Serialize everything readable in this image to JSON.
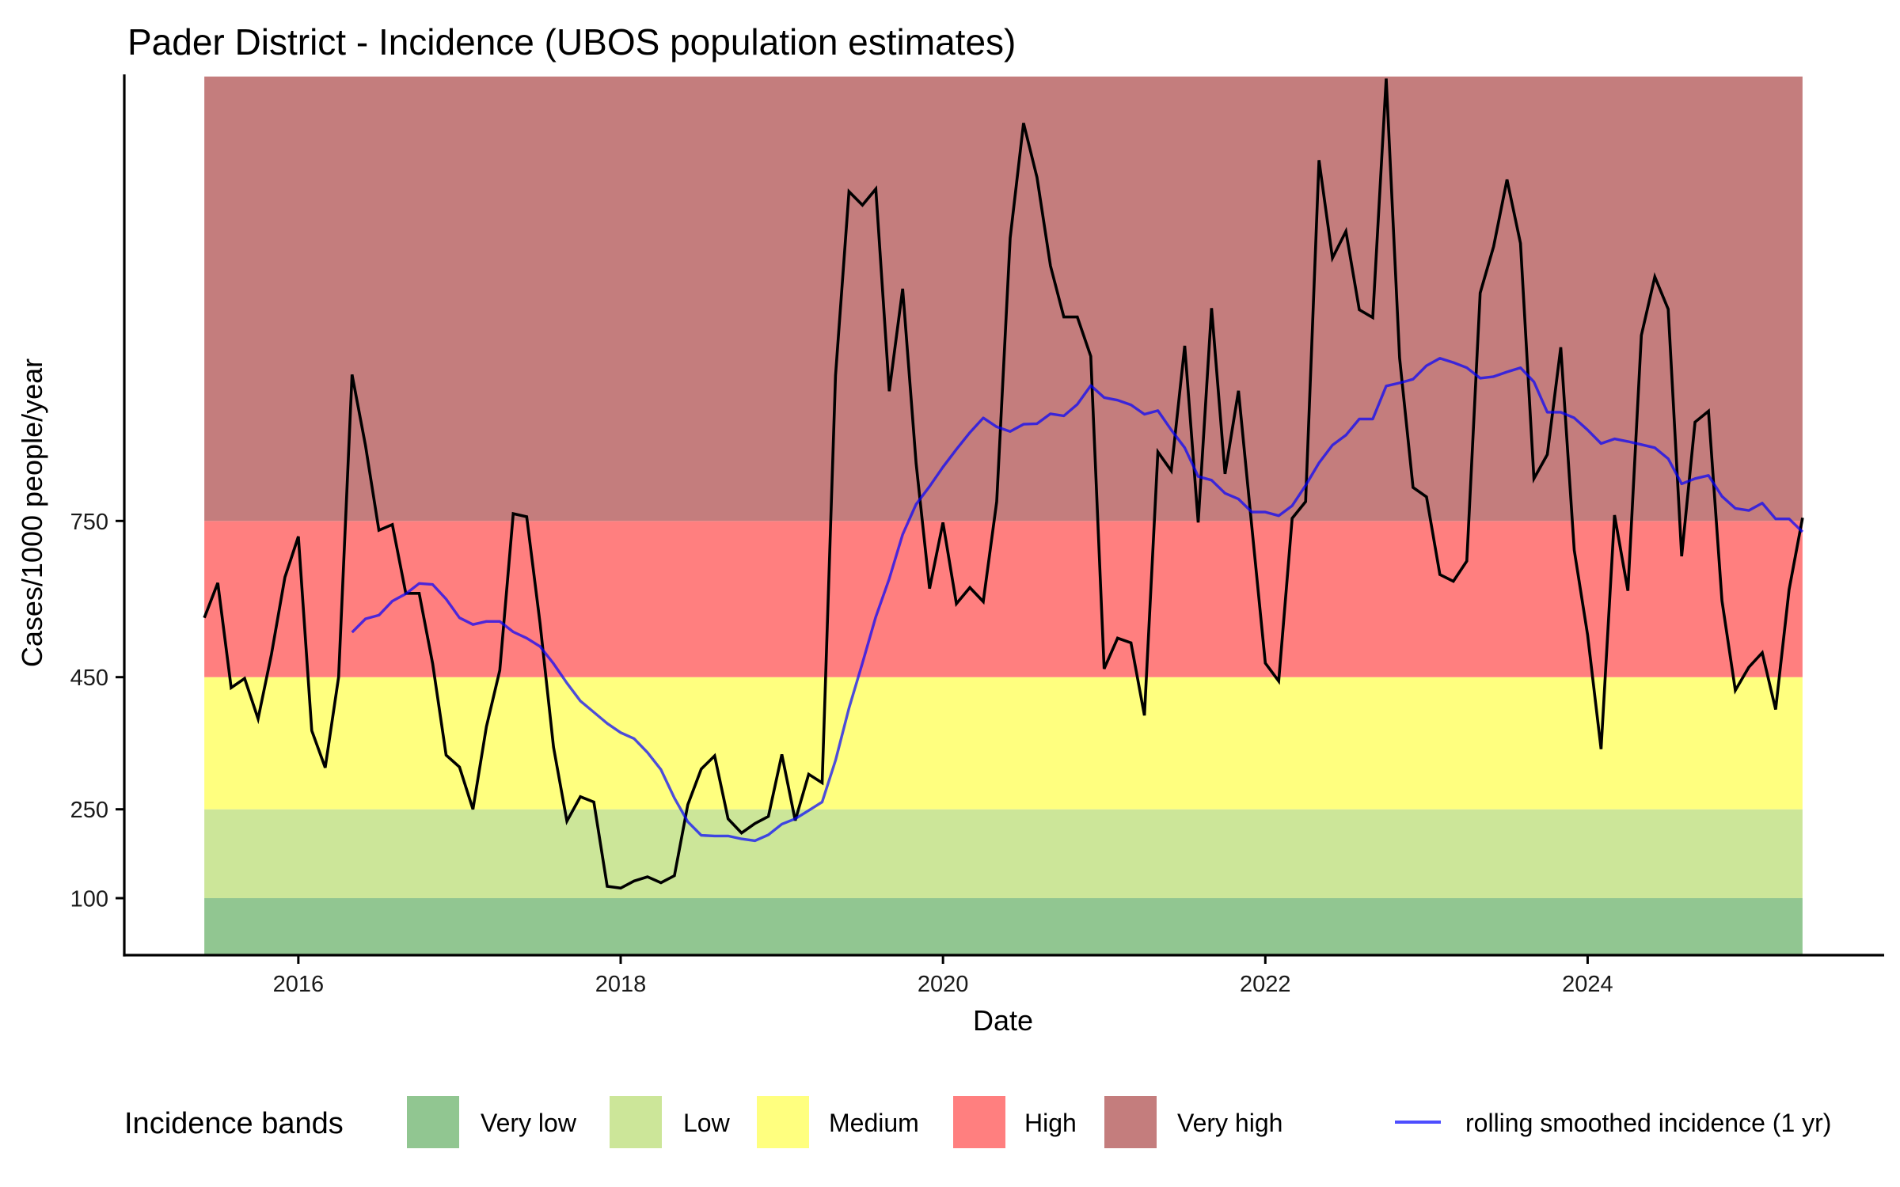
{
  "chart_data": {
    "type": "line",
    "title": "Pader District - Incidence (UBOS population estimates)",
    "xlabel": "Date",
    "ylabel": "Cases/1000 people/year",
    "x_unit": "month",
    "xlim": [
      2014.92,
      2025.84
    ],
    "ylim": [
      0,
      1600
    ],
    "y_scale": "piecewise (band-based, non-linear)",
    "y_scale_anchors": [
      0,
      100,
      250,
      450,
      750,
      1600
    ],
    "x_ticks": [
      {
        "value": 2016,
        "label": "2016"
      },
      {
        "value": 2018,
        "label": "2018"
      },
      {
        "value": 2020,
        "label": "2020"
      },
      {
        "value": 2022,
        "label": "2022"
      },
      {
        "value": 2024,
        "label": "2024"
      }
    ],
    "y_ticks": [
      {
        "value": 100,
        "label": "100"
      },
      {
        "value": 250,
        "label": "250"
      },
      {
        "value": 450,
        "label": "450"
      },
      {
        "value": 750,
        "label": "750"
      }
    ],
    "grid": false,
    "bands": [
      {
        "name": "Very low",
        "from": 0,
        "to": 100,
        "color": "#91C691"
      },
      {
        "name": "Low",
        "from": 100,
        "to": 250,
        "color": "#CCE699"
      },
      {
        "name": "Medium",
        "from": 250,
        "to": 450,
        "color": "#FFFF7F"
      },
      {
        "name": "High",
        "from": 450,
        "to": 750,
        "color": "#FF7F7F"
      },
      {
        "name": "Very high",
        "from": 750,
        "to": 1600,
        "color": "#C47D7D"
      }
    ],
    "band_x_range": [
      "2015-06",
      "2025-05"
    ],
    "series": [
      {
        "name": "incidence",
        "color": "#000000",
        "start": "2015-06",
        "values": [
          564,
          631,
          434,
          448,
          387,
          494,
          642,
          720,
          369,
          313,
          450,
          1030,
          894,
          732,
          743,
          611,
          611,
          476,
          332,
          314,
          250,
          375,
          463,
          764,
          758,
          553,
          344,
          230,
          269,
          261,
          120,
          117,
          129,
          136,
          126,
          138,
          257,
          311,
          331,
          234,
          210,
          226,
          238,
          333,
          231,
          303,
          290,
          1028,
          1380,
          1354,
          1385,
          998,
          1194,
          860,
          620,
          747,
          591,
          622,
          595,
          787,
          1291,
          1511,
          1407,
          1238,
          1140,
          1140,
          1065,
          466,
          525,
          516,
          392,
          882,
          846,
          1085,
          747,
          1157,
          840,
          999,
          738,
          477,
          444,
          755,
          787,
          1440,
          1253,
          1304,
          1154,
          1139,
          1596,
          1062,
          814,
          796,
          647,
          634,
          673,
          1186,
          1275,
          1403,
          1281,
          831,
          877,
          1082,
          694,
          531,
          341,
          761,
          616,
          1105,
          1217,
          1155,
          682,
          939,
          960,
          597,
          430,
          469,
          497,
          401,
          618,
          756
        ]
      },
      {
        "name": "rolling smoothed incidence (1 yr)",
        "color": "#0000FF",
        "opacity": 0.7,
        "start": "2016-05",
        "values": [
          536,
          562,
          569,
          596,
          610,
          630,
          628,
          600,
          564,
          551,
          557,
          557,
          537,
          525,
          509,
          476,
          441,
          414,
          397,
          380,
          366,
          357,
          336,
          310,
          267,
          229,
          206,
          205,
          205,
          200,
          197,
          207,
          225,
          234,
          248,
          261,
          324,
          403,
          477,
          566,
          639,
          724,
          782,
          816,
          853,
          887,
          919,
          947,
          930,
          921,
          935,
          936,
          955,
          951,
          973,
          1009,
          986,
          981,
          972,
          954,
          961,
          924,
          890,
          835,
          828,
          803,
          792,
          767,
          767,
          760,
          779,
          818,
          861,
          895,
          914,
          945,
          945,
          1008,
          1014,
          1021,
          1047,
          1061,
          1053,
          1043,
          1023,
          1026,
          1035,
          1043,
          1016,
          958,
          958,
          947,
          924,
          898,
          907,
          902,
          896,
          890,
          869,
          821,
          831,
          837,
          797,
          774,
          770,
          784,
          754,
          754,
          729
        ]
      }
    ],
    "legend": {
      "position": "bottom",
      "title": "Incidence bands",
      "fill_items": [
        {
          "label": "Very low",
          "color": "#91C691"
        },
        {
          "label": "Low",
          "color": "#CCE699"
        },
        {
          "label": "Medium",
          "color": "#FFFF7F"
        },
        {
          "label": "High",
          "color": "#FF7F7F"
        },
        {
          "label": "Very high",
          "color": "#C47D7D"
        }
      ],
      "line_item": {
        "label": "rolling smoothed incidence (1 yr)",
        "color": "#4D4DFF"
      }
    }
  }
}
